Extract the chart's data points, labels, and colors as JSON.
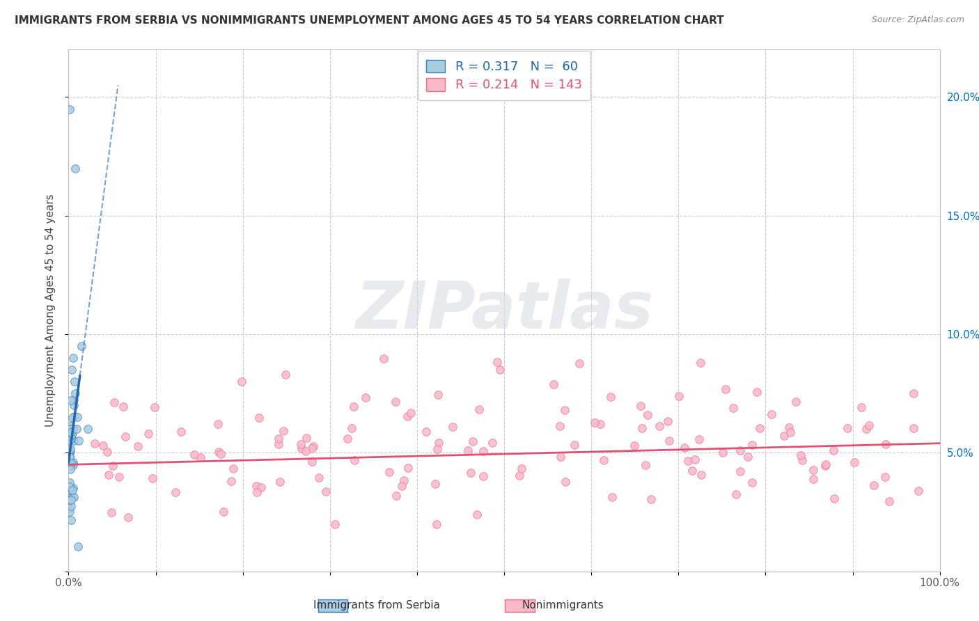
{
  "title": "IMMIGRANTS FROM SERBIA VS NONIMMIGRANTS UNEMPLOYMENT AMONG AGES 45 TO 54 YEARS CORRELATION CHART",
  "source": "Source: ZipAtlas.com",
  "ylabel": "Unemployment Among Ages 45 to 54 years",
  "xlim": [
    0,
    1.0
  ],
  "ylim": [
    0,
    0.22
  ],
  "xticks": [
    0,
    0.1,
    0.2,
    0.3,
    0.4,
    0.5,
    0.6,
    0.7,
    0.8,
    0.9,
    1.0
  ],
  "xticklabels_left": "0.0%",
  "xticklabels_right": "100.0%",
  "yticks": [
    0,
    0.05,
    0.1,
    0.15,
    0.2
  ],
  "yticklabels": [
    "",
    "5.0%",
    "10.0%",
    "15.0%",
    "20.0%"
  ],
  "blue_color": "#a8cce0",
  "blue_edge_color": "#3a7bbf",
  "blue_line_color": "#2166ac",
  "pink_color": "#f9b8c8",
  "pink_edge_color": "#e8708a",
  "pink_line_color": "#e05070",
  "watermark_text": "ZIPatlas",
  "serbia_N": 60,
  "nonimm_N": 143,
  "serbia_R": 0.317,
  "nonimm_R": 0.214,
  "serbia_line_intercept": 0.046,
  "serbia_line_slope": 2.8,
  "nonimm_line_intercept": 0.045,
  "nonimm_line_slope": 0.009,
  "serbia_dash_slope": 2.8,
  "serbia_dash_intercept": 0.046,
  "legend_label1": "R = 0.317   N =  60",
  "legend_label2": "R = 0.214   N = 143",
  "bottom_label1": "Immigrants from Serbia",
  "bottom_label2": "Nonimmigrants",
  "tick_color": "#0070C0",
  "title_color": "#333333",
  "source_color": "#888888",
  "grid_color": "#cccccc",
  "grid_style": "--"
}
